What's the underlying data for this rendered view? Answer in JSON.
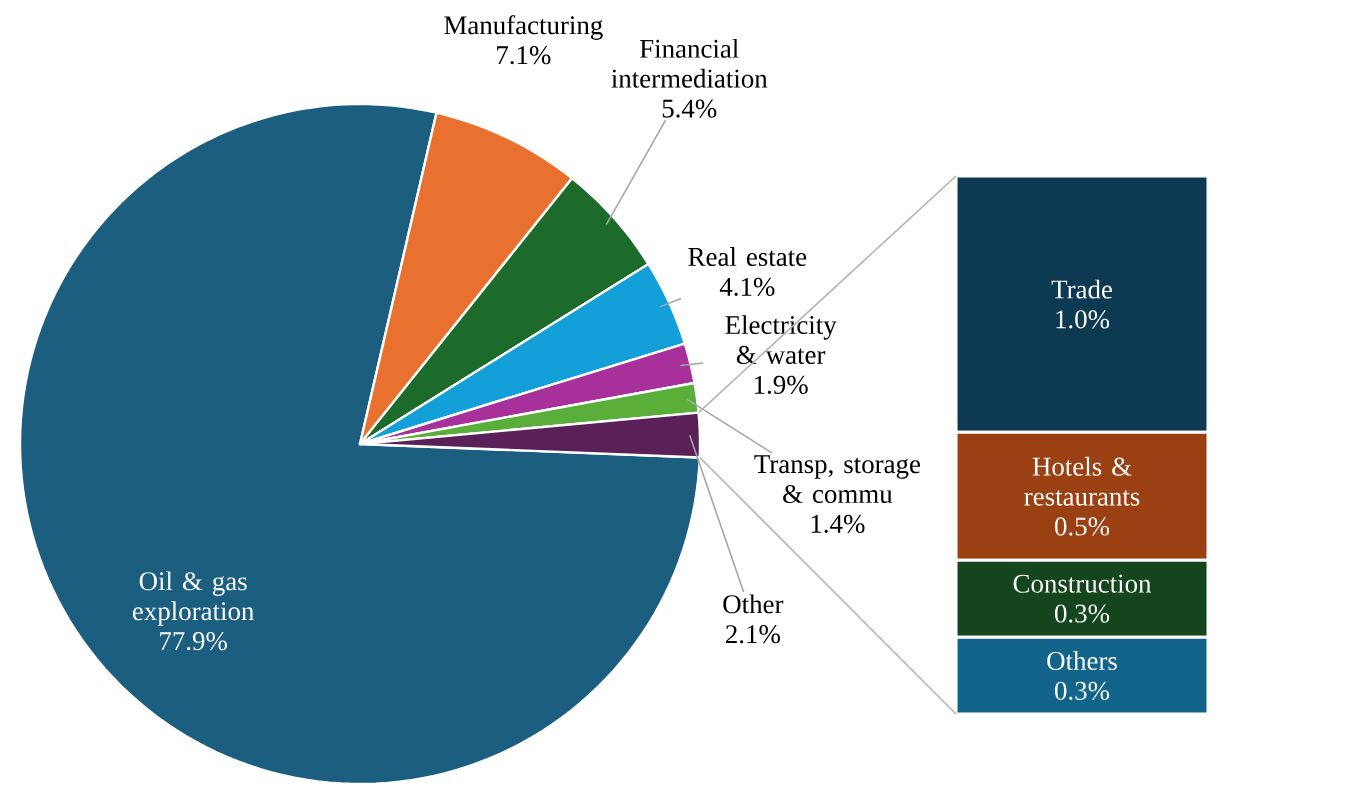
{
  "chart_data": [
    {
      "type": "pie",
      "categories": [
        "Oil & gas exploration",
        "Manufacturing",
        "Financial intermediation",
        "Real estate",
        "Electricity & water",
        "Transp, storage & commu",
        "Other"
      ],
      "values": [
        77.9,
        7.1,
        5.4,
        4.1,
        1.9,
        1.4,
        2.1
      ],
      "value_labels": [
        "77.9%",
        "7.1%",
        "5.4%",
        "4.1%",
        "1.9%",
        "1.4%",
        "2.1%"
      ],
      "colors": [
        "#1b5e80",
        "#e8712f",
        "#1c6b2a",
        "#13a0d8",
        "#a8309a",
        "#5aae3a",
        "#5a2058"
      ]
    },
    {
      "type": "bar",
      "stacked": true,
      "categories": [
        null
      ],
      "series": [
        {
          "name": "Others",
          "color": "#12648a",
          "values": [
            0.3
          ],
          "value_labels": [
            "0.3%"
          ]
        },
        {
          "name": "Construction",
          "color": "#14451c",
          "values": [
            0.3
          ],
          "value_labels": [
            "0.3%"
          ]
        },
        {
          "name": "Hotels & restaurants",
          "color": "#9a4012",
          "values": [
            0.5
          ],
          "value_labels": [
            "0.5%"
          ]
        },
        {
          "name": "Trade",
          "color": "#0d3a52",
          "values": [
            1.0
          ],
          "value_labels": [
            "1.0%"
          ]
        }
      ]
    }
  ]
}
